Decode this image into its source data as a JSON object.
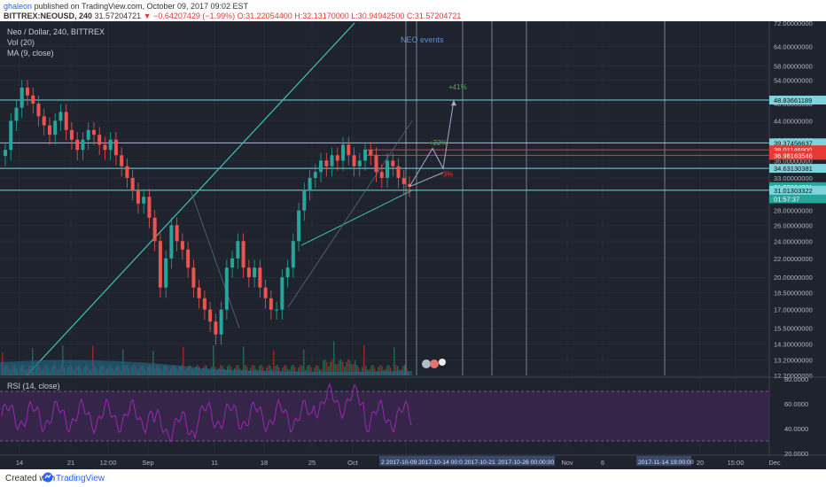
{
  "header": {
    "author": "ghaleon",
    "published_text": "published on TradingView.com, October 09, 2017 09:02 EST",
    "symbol_line": "BITTREX:NEOUSD, 240",
    "last": "31.57204721",
    "change": "−0.64207429 (−1.99%)",
    "ohlc": "O:31.22054400 H:32.13170000 L:30.94942500 C:31.57204721"
  },
  "legend": {
    "title": "Neo / Dollar, 240, BITTREX",
    "vol": "Vol (20)",
    "ma": "MA (9, close)",
    "rsi": "RSI (14, close)"
  },
  "annotations": {
    "events": "NEO events",
    "plus41": "+41%",
    "plus22": "+22%",
    "minus3": "-3%"
  },
  "footer": {
    "created_with": "Created with",
    "brand": "TradingView"
  },
  "colors": {
    "background": "#1e232d",
    "up": "#26a69a",
    "down": "#ef5350",
    "hline": "#7fd3dc",
    "redline": "#e53935",
    "rsi": "#9c27b0",
    "green_text": "#4caf50"
  },
  "chart_data": {
    "type": "candlestick",
    "symbol": "BITTREX:NEOUSD",
    "interval": "240",
    "ylim": [
      12.2,
      72.0
    ],
    "scale": "log",
    "y_ticks": [
      "72.00000000",
      "64.00000000",
      "58.00000000",
      "54.00000000",
      "48.00000000",
      "44.00000000",
      "40.00000000",
      "36.00000000",
      "33.00000000",
      "30.00000000",
      "28.00000000",
      "26.00000000",
      "24.00000000",
      "22.00000000",
      "20.00000000",
      "18.50000000",
      "17.00000000",
      "15.50000000",
      "14.30000000",
      "13.20000000",
      "12.20000000"
    ],
    "x_ticks": [
      "14",
      "21",
      "12:00",
      "Sep",
      "11",
      "18",
      "25",
      "Oct",
      "6",
      "Nov",
      "6",
      "20",
      "15:00",
      "Dec"
    ],
    "price_labels": [
      {
        "value": "48.83661189",
        "kind": "hline"
      },
      {
        "value": "39.37456637",
        "kind": "hline"
      },
      {
        "value": "38.01146900",
        "kind": "red"
      },
      {
        "value": "36.98163546",
        "kind": "red"
      },
      {
        "value": "34.63130381",
        "kind": "hline"
      },
      {
        "value": "31.57204721",
        "kind": "last"
      },
      {
        "value": "01:57:37",
        "kind": "countdown"
      },
      {
        "value": "31.01303322",
        "kind": "hline"
      }
    ],
    "horizontal_levels": [
      48.83661189,
      39.37456637,
      34.63130381,
      31.01303322
    ],
    "red_levels": [
      38.011469,
      36.98163546
    ],
    "date_labels": [
      "2 2017-10-09",
      "2017-10-14 00:00 0(",
      "2017-10-21 0(",
      "2017-10-26 00:00:00",
      "2017-11-14 19:00:00"
    ],
    "series": [
      {
        "name": "NEOUSD",
        "values": [
          38,
          44,
          47,
          52,
          50,
          48,
          45,
          43,
          41,
          44,
          46,
          42,
          40,
          38,
          40,
          42,
          41,
          39,
          38,
          40,
          37,
          35,
          33,
          31,
          29,
          30,
          27,
          24,
          19,
          22,
          26,
          24,
          23,
          21,
          19,
          18,
          17,
          16,
          15,
          17,
          21,
          22,
          24,
          21,
          20,
          21,
          19,
          18,
          17,
          17,
          20,
          21,
          24,
          28,
          31,
          33,
          34,
          36,
          35,
          37,
          36,
          39,
          37,
          35,
          36,
          38,
          37,
          34,
          33,
          36,
          35,
          33,
          32,
          31.57
        ]
      }
    ],
    "rsi": {
      "name": "RSI (14, close)",
      "ylim": [
        20,
        80
      ],
      "y_ticks": [
        "80.0000",
        "60.0000",
        "40.0000",
        "20.0000"
      ],
      "bands": [
        70,
        30
      ]
    }
  }
}
